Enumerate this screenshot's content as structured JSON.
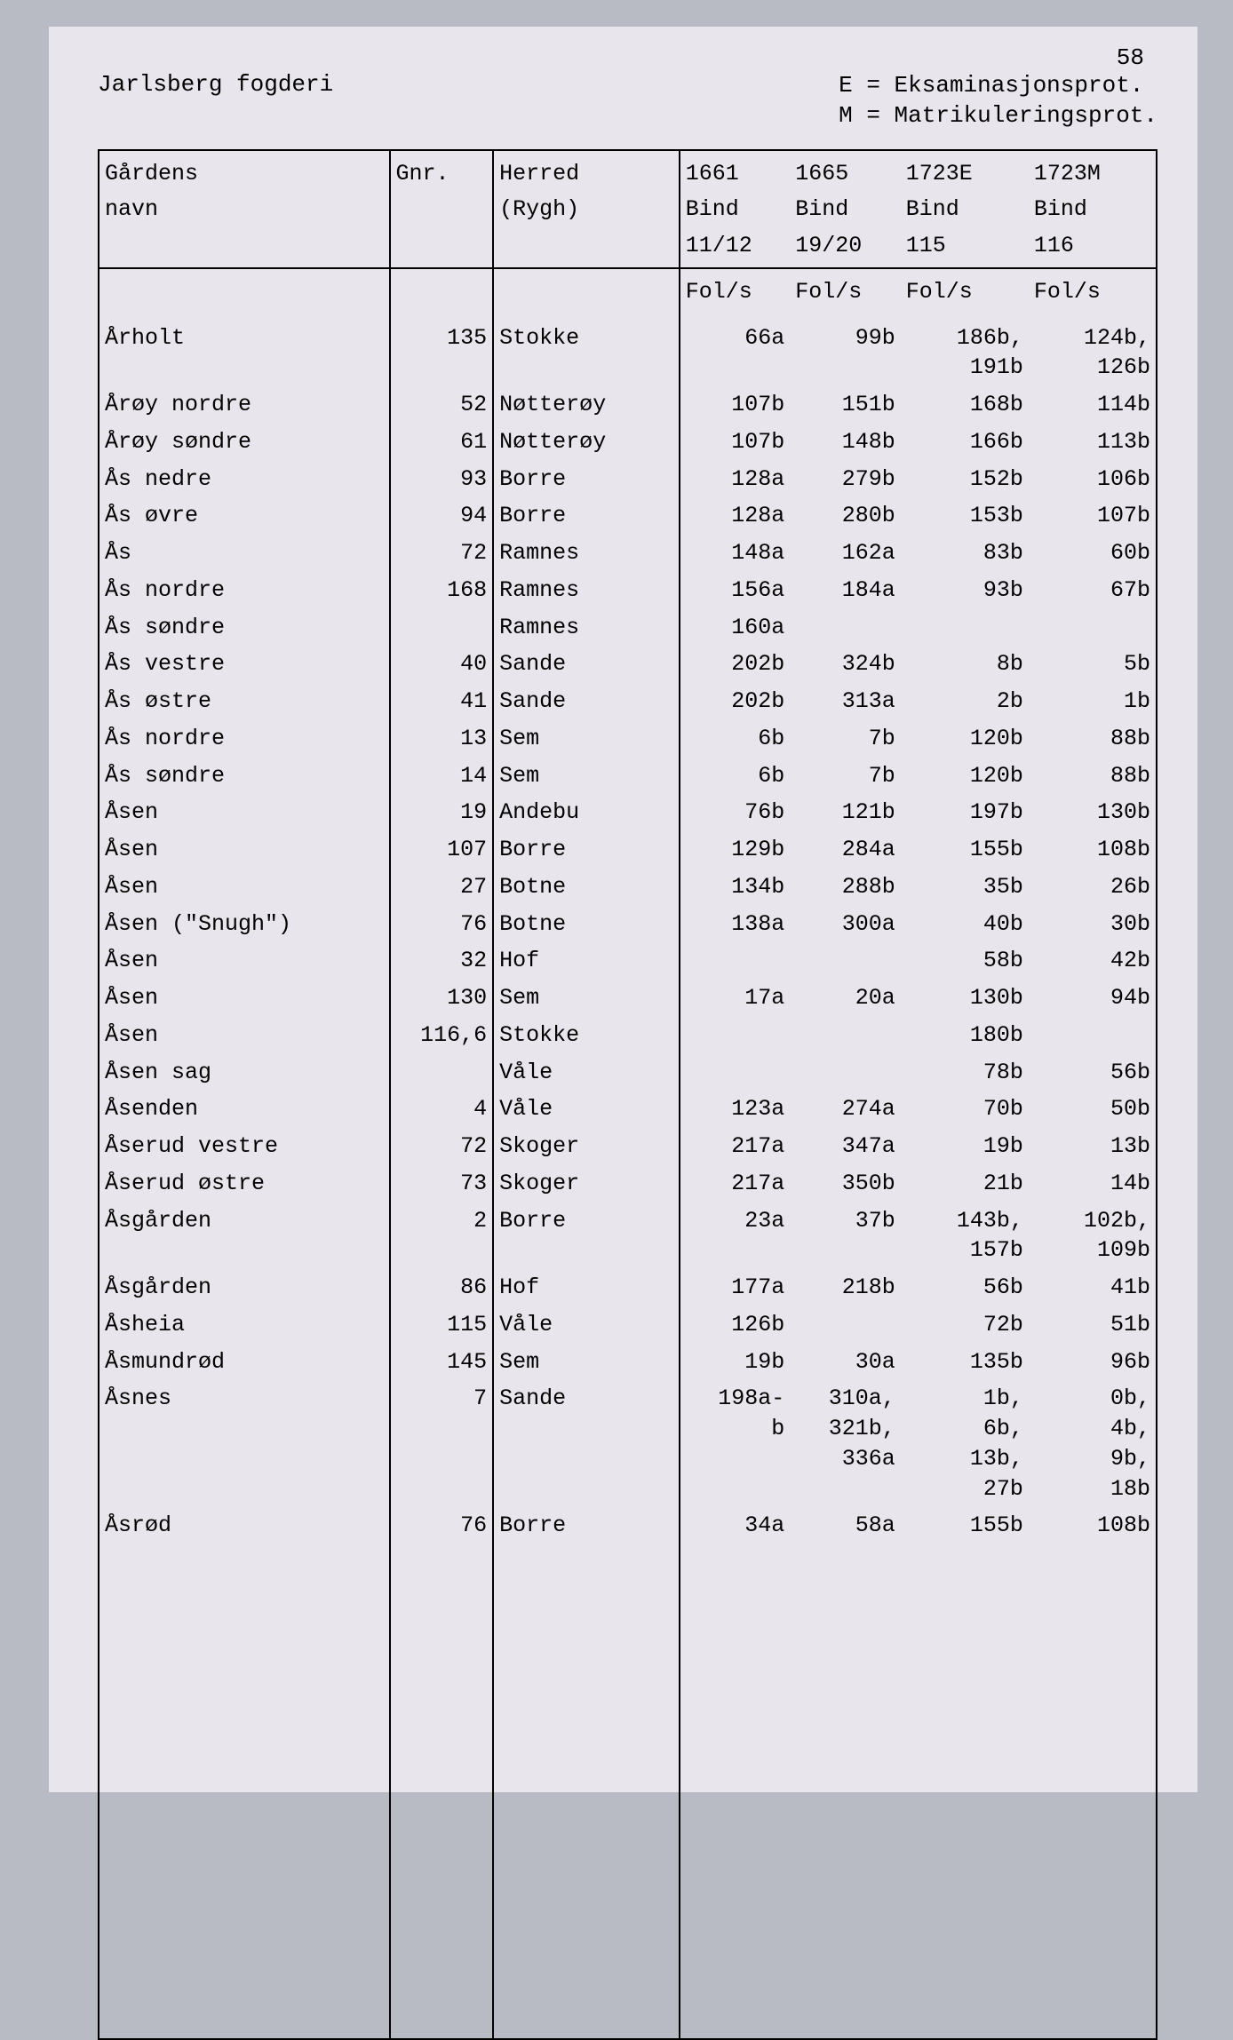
{
  "page_number": "58",
  "header": {
    "title": "Jarlsberg fogderi",
    "legend_line1": "E = Eksaminasjonsprot.",
    "legend_line2": "M = Matrikuleringsprot."
  },
  "columns": {
    "name_l1": "Gårdens",
    "name_l2": "navn",
    "gnr": "Gnr.",
    "herred_l1": "Herred",
    "herred_l2": "(Rygh)",
    "y1661_l1": "1661",
    "y1661_l2": "Bind",
    "y1661_l3": "11/12",
    "y1665_l1": "1665",
    "y1665_l2": "Bind",
    "y1665_l3": "19/20",
    "y1723e_l1": "1723E",
    "y1723e_l2": "Bind",
    "y1723e_l3": "115",
    "y1723m_l1": "1723M",
    "y1723m_l2": "Bind",
    "y1723m_l3": "116",
    "fols": "Fol/s"
  },
  "rows": [
    {
      "name": "Årholt",
      "gnr": "135",
      "herred": "Stokke",
      "y1661": "66a",
      "y1665": "99b",
      "y1723e": "186b,\n191b",
      "y1723m": "124b,\n126b"
    },
    {
      "name": "Årøy nordre",
      "gnr": "52",
      "herred": "Nøtterøy",
      "y1661": "107b",
      "y1665": "151b",
      "y1723e": "168b",
      "y1723m": "114b"
    },
    {
      "name": "Årøy søndre",
      "gnr": "61",
      "herred": "Nøtterøy",
      "y1661": "107b",
      "y1665": "148b",
      "y1723e": "166b",
      "y1723m": "113b"
    },
    {
      "name": "Ås nedre",
      "gnr": "93",
      "herred": "Borre",
      "y1661": "128a",
      "y1665": "279b",
      "y1723e": "152b",
      "y1723m": "106b"
    },
    {
      "name": "Ås øvre",
      "gnr": "94",
      "herred": "Borre",
      "y1661": "128a",
      "y1665": "280b",
      "y1723e": "153b",
      "y1723m": "107b"
    },
    {
      "name": "Ås",
      "gnr": "72",
      "herred": "Ramnes",
      "y1661": "148a",
      "y1665": "162a",
      "y1723e": "83b",
      "y1723m": "60b"
    },
    {
      "name": "Ås nordre",
      "gnr": "168",
      "herred": "Ramnes",
      "y1661": "156a",
      "y1665": "184a",
      "y1723e": "93b",
      "y1723m": "67b"
    },
    {
      "name": "Ås søndre",
      "gnr": "",
      "herred": "Ramnes",
      "y1661": "160a",
      "y1665": "",
      "y1723e": "",
      "y1723m": ""
    },
    {
      "name": "Ås vestre",
      "gnr": "40",
      "herred": "Sande",
      "y1661": "202b",
      "y1665": "324b",
      "y1723e": "8b",
      "y1723m": "5b"
    },
    {
      "name": "Ås østre",
      "gnr": "41",
      "herred": "Sande",
      "y1661": "202b",
      "y1665": "313a",
      "y1723e": "2b",
      "y1723m": "1b"
    },
    {
      "name": "Ås nordre",
      "gnr": "13",
      "herred": "Sem",
      "y1661": "6b",
      "y1665": "7b",
      "y1723e": "120b",
      "y1723m": "88b"
    },
    {
      "name": "Ås søndre",
      "gnr": "14",
      "herred": "Sem",
      "y1661": "6b",
      "y1665": "7b",
      "y1723e": "120b",
      "y1723m": "88b"
    },
    {
      "name": "Åsen",
      "gnr": "19",
      "herred": "Andebu",
      "y1661": "76b",
      "y1665": "121b",
      "y1723e": "197b",
      "y1723m": "130b"
    },
    {
      "name": "Åsen",
      "gnr": "107",
      "herred": "Borre",
      "y1661": "129b",
      "y1665": "284a",
      "y1723e": "155b",
      "y1723m": "108b"
    },
    {
      "name": "Åsen",
      "gnr": "27",
      "herred": "Botne",
      "y1661": "134b",
      "y1665": "288b",
      "y1723e": "35b",
      "y1723m": "26b"
    },
    {
      "name": "Åsen (\"Snugh\")",
      "gnr": "76",
      "herred": "Botne",
      "y1661": "138a",
      "y1665": "300a",
      "y1723e": "40b",
      "y1723m": "30b"
    },
    {
      "name": "Åsen",
      "gnr": "32",
      "herred": "Hof",
      "y1661": "",
      "y1665": "",
      "y1723e": "58b",
      "y1723m": "42b"
    },
    {
      "name": "Åsen",
      "gnr": "130",
      "herred": "Sem",
      "y1661": "17a",
      "y1665": "20a",
      "y1723e": "130b",
      "y1723m": "94b"
    },
    {
      "name": "Åsen",
      "gnr": "116,6",
      "herred": "Stokke",
      "y1661": "",
      "y1665": "",
      "y1723e": "180b",
      "y1723m": ""
    },
    {
      "name": "Åsen sag",
      "gnr": "",
      "herred": "Våle",
      "y1661": "",
      "y1665": "",
      "y1723e": "78b",
      "y1723m": "56b"
    },
    {
      "name": "Åsenden",
      "gnr": "4",
      "herred": "Våle",
      "y1661": "123a",
      "y1665": "274a",
      "y1723e": "70b",
      "y1723m": "50b"
    },
    {
      "name": "Åserud vestre",
      "gnr": "72",
      "herred": "Skoger",
      "y1661": "217a",
      "y1665": "347a",
      "y1723e": "19b",
      "y1723m": "13b"
    },
    {
      "name": "Åserud østre",
      "gnr": "73",
      "herred": "Skoger",
      "y1661": "217a",
      "y1665": "350b",
      "y1723e": "21b",
      "y1723m": "14b"
    },
    {
      "name": "Åsgården",
      "gnr": "2",
      "herred": "Borre",
      "y1661": "23a",
      "y1665": "37b",
      "y1723e": "143b,\n157b",
      "y1723m": "102b,\n109b"
    },
    {
      "name": "Åsgården",
      "gnr": "86",
      "herred": "Hof",
      "y1661": "177a",
      "y1665": "218b",
      "y1723e": "56b",
      "y1723m": "41b"
    },
    {
      "name": "Åsheia",
      "gnr": "115",
      "herred": "Våle",
      "y1661": "126b",
      "y1665": "",
      "y1723e": "72b",
      "y1723m": "51b"
    },
    {
      "name": "Åsmundrød",
      "gnr": "145",
      "herred": "Sem",
      "y1661": "19b",
      "y1665": "30a",
      "y1723e": "135b",
      "y1723m": "96b"
    },
    {
      "name": "Åsnes",
      "gnr": "7",
      "herred": "Sande",
      "y1661": "198a-\nb",
      "y1665": "310a,\n321b,\n336a",
      "y1723e": "1b,\n6b,\n13b,\n27b",
      "y1723m": "0b,\n4b,\n9b,\n18b"
    },
    {
      "name": "Åsrød",
      "gnr": "76",
      "herred": "Borre",
      "y1661": "34a",
      "y1665": "58a",
      "y1723e": "155b",
      "y1723m": "108b"
    }
  ],
  "styling": {
    "background_color": "#b8bac4",
    "page_color": "#e8e6ec",
    "border_color": "#000000",
    "font_family": "Courier New",
    "font_size_body": 25,
    "font_size_header": 26
  }
}
